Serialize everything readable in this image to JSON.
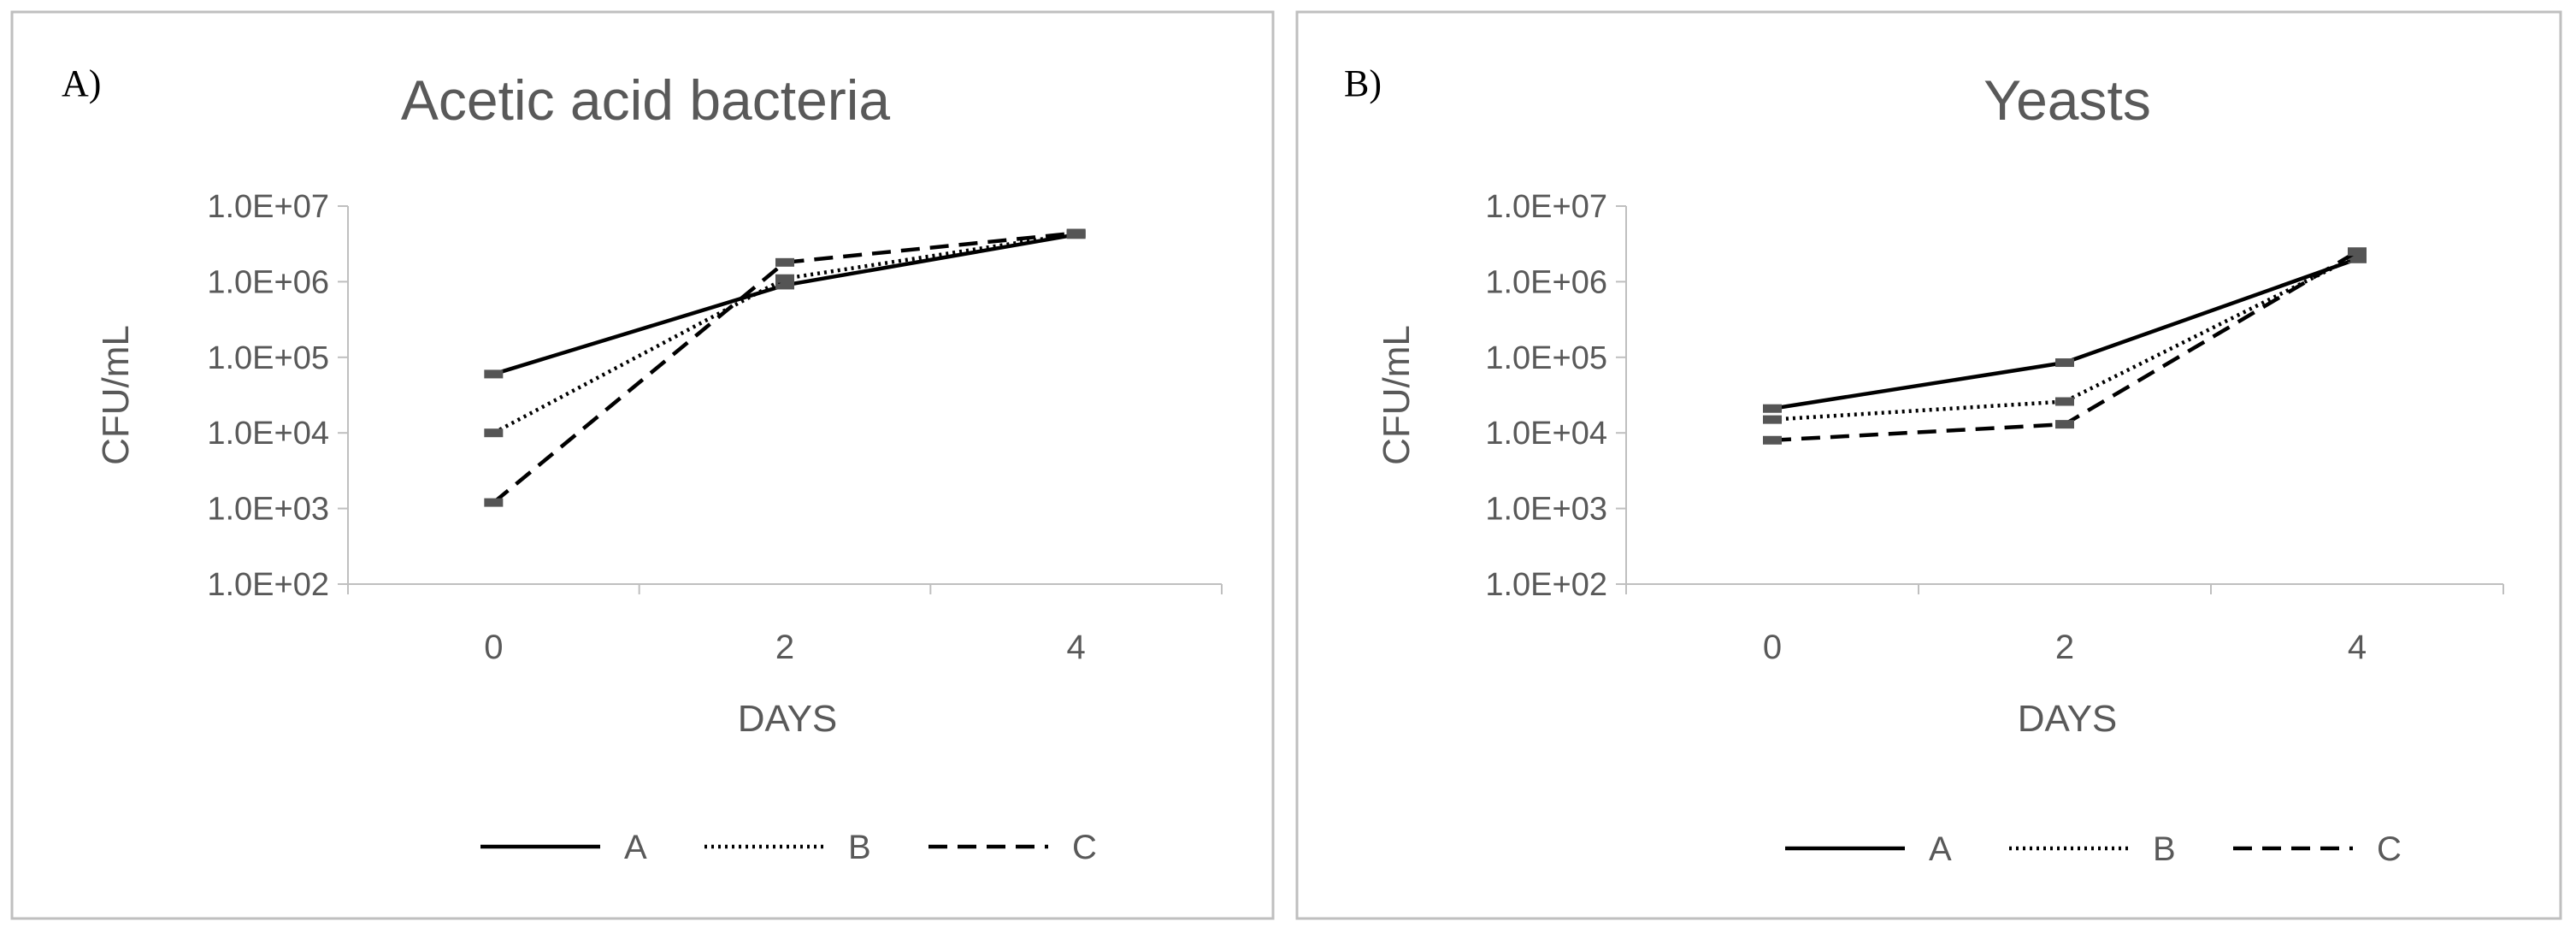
{
  "chart_data": [
    {
      "type": "line",
      "panel_label": "A)",
      "title": "Acetic acid bacteria",
      "xlabel": "DAYS",
      "ylabel": "CFU/mL",
      "x": [
        0,
        2,
        4
      ],
      "x_tick_labels": [
        "0",
        "2",
        "4"
      ],
      "y_scale": "log",
      "ylim": [
        100,
        10000000
      ],
      "y_tick_labels": [
        "1.0E+02",
        "1.0E+03",
        "1.0E+04",
        "1.0E+05",
        "1.0E+06",
        "1.0E+07"
      ],
      "grid": false,
      "legend_position": "bottom",
      "series": [
        {
          "name": "A",
          "values": [
            60000,
            900000,
            4200000
          ]
        },
        {
          "name": "B",
          "values": [
            10000,
            1100000,
            4300000
          ]
        },
        {
          "name": "C",
          "values": [
            1200,
            1800000,
            4400000
          ]
        }
      ]
    },
    {
      "type": "line",
      "panel_label": "B)",
      "title": "Yeasts",
      "xlabel": "DAYS",
      "ylabel": "CFU/mL",
      "x": [
        0,
        2,
        4
      ],
      "x_tick_labels": [
        "0",
        "2",
        "4"
      ],
      "y_scale": "log",
      "ylim": [
        100,
        10000000
      ],
      "y_tick_labels": [
        "1.0E+02",
        "1.0E+03",
        "1.0E+04",
        "1.0E+05",
        "1.0E+06",
        "1.0E+07"
      ],
      "grid": false,
      "legend_position": "bottom",
      "series": [
        {
          "name": "A",
          "values": [
            21000,
            85000,
            2000000
          ]
        },
        {
          "name": "B",
          "values": [
            15000,
            26000,
            2200000
          ]
        },
        {
          "name": "C",
          "values": [
            8000,
            13000,
            2500000
          ]
        }
      ]
    }
  ],
  "styles": {
    "line_color": "#000000",
    "marker_color": "#555555",
    "text_color": "#595959",
    "axis_color": "#bfbfbf",
    "border_color": "#bfbfbf",
    "series_dash": {
      "A": "solid",
      "B": "dotted",
      "C": "dashed"
    }
  }
}
